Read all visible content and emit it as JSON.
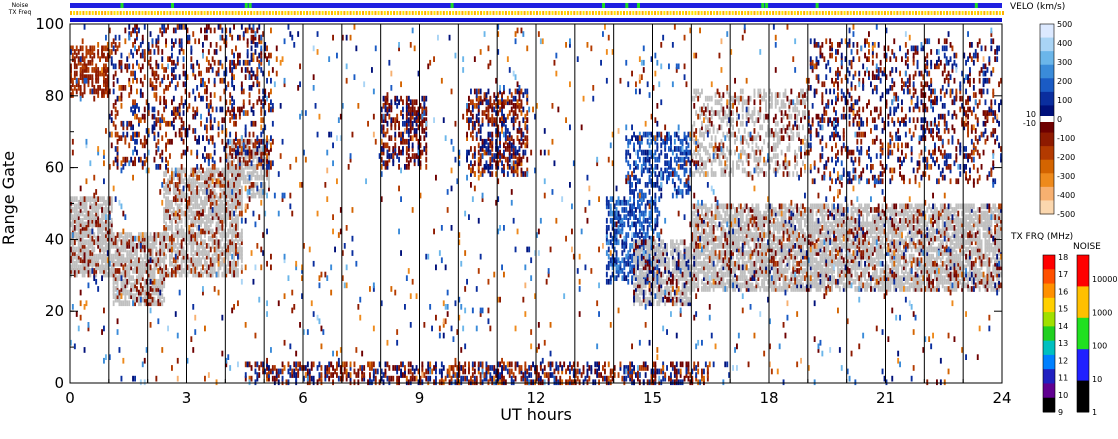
{
  "header": {
    "noise_label": "Noise",
    "txfreq_label": "TX Freq"
  },
  "chart_data": {
    "type": "heatmap",
    "xlabel": "UT hours",
    "ylabel": "Range Gate",
    "xlim": [
      0,
      24
    ],
    "ylim": [
      0,
      100
    ],
    "x_ticks": [
      "0",
      "3",
      "6",
      "9",
      "12",
      "15",
      "18",
      "21",
      "24"
    ],
    "y_ticks": [
      "0",
      "20",
      "40",
      "60",
      "80",
      "100"
    ],
    "scan_boundaries_ut": [
      1.0,
      2.0,
      3.0,
      4.0,
      5.0,
      6.0,
      7.0,
      8.0,
      9.0,
      10.0,
      11.0,
      12.0,
      13.0,
      14.0,
      15.0,
      16.0,
      17.0,
      18.0,
      19.0,
      20.0,
      21.0,
      22.0,
      23.0
    ],
    "ground_scatter_color": "#c0c0c0",
    "status_bars": {
      "noise": {
        "base_color": "#2020e0",
        "spike_color": "#20e020",
        "spike_ut": [
          1.3,
          2.6,
          4.5,
          4.6,
          9.8,
          13.7,
          14.3,
          14.6,
          17.8,
          17.9,
          19.2,
          23.3
        ]
      },
      "txfreq": [
        {
          "from_ut": 0,
          "to_ut": 16,
          "colors": [
            "#ffb000",
            "#ffe000"
          ]
        },
        {
          "from_ut": 16,
          "to_ut": 24,
          "colors": [
            "#ffe000",
            "#ffb000"
          ]
        }
      ]
    },
    "velocity_scale": {
      "title": "VELO (km/s)",
      "ticks": [
        "500",
        "400",
        "300",
        "200",
        "100",
        "0",
        "-100",
        "-200",
        "-300",
        "-400",
        "-500"
      ],
      "gs_ticks": [
        "10",
        "-10"
      ],
      "colors": [
        "#dce9ff",
        "#a9d4f5",
        "#6bb6ea",
        "#3a8bd9",
        "#1a5bc4",
        "#0a2e9e",
        "#00107a",
        "#6e0000",
        "#8e1a00",
        "#b33a00",
        "#d46400",
        "#ee8a1c",
        "#f7b070",
        "#fbd7ae"
      ]
    },
    "txfreq_scale": {
      "title": "TX FRQ (MHz)",
      "ticks": [
        "18",
        "17",
        "16",
        "15",
        "14",
        "13",
        "12",
        "11",
        "10",
        "9"
      ],
      "colors": [
        "#ff0000",
        "#ff5000",
        "#ff9000",
        "#ffd000",
        "#a0e000",
        "#20d020",
        "#00c0c0",
        "#0080ff",
        "#2020c0",
        "#600090",
        "#000000"
      ]
    },
    "noise_scale": {
      "title": "NOISE",
      "ticks": [
        "10000",
        "1000",
        "100",
        "10",
        "1"
      ],
      "colors": [
        "#ff0000",
        "#ffc000",
        "#20e020",
        "#2020ff",
        "#000000"
      ]
    },
    "echo_regions": [
      {
        "kind": "gs",
        "t0": 0.0,
        "t1": 1.1,
        "r0": 30,
        "r1": 52,
        "density": 0.8,
        "vel": [
          -150,
          -50
        ]
      },
      {
        "kind": "gs",
        "t0": 1.1,
        "t1": 2.4,
        "r0": 22,
        "r1": 42,
        "density": 0.75,
        "vel": [
          -150,
          -50
        ]
      },
      {
        "kind": "gs",
        "t0": 2.4,
        "t1": 4.4,
        "r0": 30,
        "r1": 60,
        "density": 0.7,
        "vel": [
          -200,
          -50
        ]
      },
      {
        "kind": "gs",
        "t0": 4.0,
        "t1": 5.1,
        "r0": 52,
        "r1": 68,
        "density": 0.65,
        "vel": [
          -150,
          -50
        ]
      },
      {
        "kind": "is",
        "t0": 0.0,
        "t1": 1.0,
        "r0": 80,
        "r1": 94,
        "density": 0.5,
        "vel": [
          -200,
          -80
        ]
      },
      {
        "kind": "is",
        "t0": 1.0,
        "t1": 5.2,
        "r0": 60,
        "r1": 100,
        "density": 0.22,
        "vel": [
          -250,
          150
        ]
      },
      {
        "kind": "is",
        "t0": 8.0,
        "t1": 9.2,
        "r0": 60,
        "r1": 80,
        "density": 0.4,
        "vel": [
          -200,
          100
        ]
      },
      {
        "kind": "is",
        "t0": 10.2,
        "t1": 11.8,
        "r0": 58,
        "r1": 82,
        "density": 0.45,
        "vel": [
          -250,
          150
        ]
      },
      {
        "kind": "is",
        "t0": 13.8,
        "t1": 15.2,
        "r0": 28,
        "r1": 52,
        "density": 0.5,
        "vel": [
          50,
          300
        ]
      },
      {
        "kind": "gs",
        "t0": 14.5,
        "t1": 16.0,
        "r0": 22,
        "r1": 40,
        "density": 0.7,
        "vel": [
          -50,
          50
        ]
      },
      {
        "kind": "is",
        "t0": 14.3,
        "t1": 16.0,
        "r0": 52,
        "r1": 70,
        "density": 0.35,
        "vel": [
          50,
          250
        ]
      },
      {
        "kind": "gs",
        "t0": 16.0,
        "t1": 24.0,
        "r0": 26,
        "r1": 50,
        "density": 0.72,
        "vel": [
          -200,
          50
        ]
      },
      {
        "kind": "gs",
        "t0": 16.0,
        "t1": 19.0,
        "r0": 58,
        "r1": 82,
        "density": 0.35,
        "vel": [
          -150,
          0
        ]
      },
      {
        "kind": "is",
        "t0": 19.0,
        "t1": 24.0,
        "r0": 56,
        "r1": 96,
        "density": 0.2,
        "vel": [
          -200,
          150
        ]
      },
      {
        "kind": "is",
        "t0": 4.5,
        "t1": 16.5,
        "r0": 0,
        "r1": 6,
        "density": 0.45,
        "vel": [
          -250,
          150
        ]
      },
      {
        "kind": "is",
        "t0": 0.0,
        "t1": 24.0,
        "r0": 0,
        "r1": 100,
        "density": 0.025,
        "vel": [
          -400,
          400
        ]
      }
    ]
  }
}
